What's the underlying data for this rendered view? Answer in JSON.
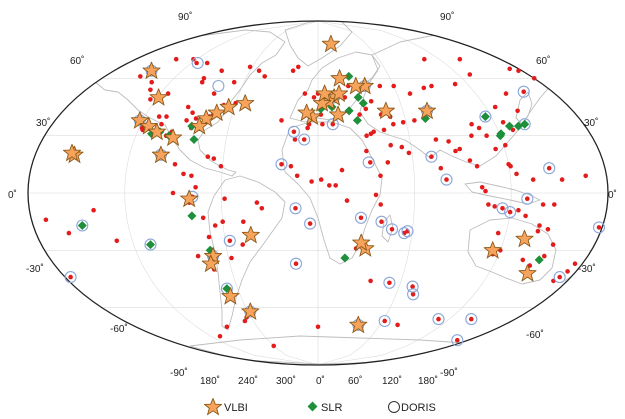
{
  "axis_labels": {
    "top_left": "90˚",
    "top_right": "90˚",
    "lat_left": [
      "60˚",
      "30˚",
      "0˚",
      "-30˚",
      "-60˚"
    ],
    "lat_right": [
      "60˚",
      "30˚",
      "0˚",
      "-30˚",
      "-60˚"
    ],
    "bottom_left": "-90˚",
    "bottom_right": "-90˚",
    "longitudes": [
      "180˚",
      "240˚",
      "300˚",
      "0˚",
      "60˚",
      "120˚",
      "180˚"
    ]
  },
  "legend": {
    "vlbi": "VLBI",
    "slr": "SLR",
    "doris": "DORIS"
  },
  "colors": {
    "gnss_dot": "#e31b1b",
    "vlbi_fill": "#f7a35c",
    "vlbi_stroke": "#8a5a1a",
    "slr_fill": "#1e8f3a",
    "doris_stroke": "#8aa6d8",
    "land": "#c9c9c9",
    "grid": "#cccccc"
  },
  "sites": {
    "gnss": [
      [
        -155,
        20
      ],
      [
        -150,
        61
      ],
      [
        -147,
        64
      ],
      [
        -135,
        58
      ],
      [
        -130,
        54
      ],
      [
        -124,
        49
      ],
      [
        -122,
        38
      ],
      [
        -118,
        34
      ],
      [
        -117,
        33
      ],
      [
        -114,
        52
      ],
      [
        -110,
        40
      ],
      [
        -106,
        36
      ],
      [
        -105,
        40
      ],
      [
        -100,
        30
      ],
      [
        -97,
        32
      ],
      [
        -95,
        29
      ],
      [
        -93,
        45
      ],
      [
        -90,
        38
      ],
      [
        -88,
        42
      ],
      [
        -85,
        34
      ],
      [
        -84,
        39
      ],
      [
        -81,
        28
      ],
      [
        -80,
        35
      ],
      [
        -77,
        39
      ],
      [
        -75,
        40
      ],
      [
        -73,
        41
      ],
      [
        -71,
        43
      ],
      [
        -68,
        46
      ],
      [
        -64,
        45
      ],
      [
        -60,
        47
      ],
      [
        -53,
        47
      ],
      [
        -95,
        60
      ],
      [
        -94,
        58
      ],
      [
        -85,
        64
      ],
      [
        -79,
        52
      ],
      [
        -68,
        58
      ],
      [
        -62,
        66
      ],
      [
        -115,
        68
      ],
      [
        -105,
        68
      ],
      [
        -123,
        70
      ],
      [
        -140,
        70
      ],
      [
        -45,
        61
      ],
      [
        -52,
        64
      ],
      [
        -22,
        64
      ],
      [
        -18,
        66
      ],
      [
        -100,
        20
      ],
      [
        -99,
        19
      ],
      [
        -90,
        15
      ],
      [
        -84,
        10
      ],
      [
        -79,
        9
      ],
      [
        -70,
        19
      ],
      [
        -66,
        18
      ],
      [
        -61,
        14
      ],
      [
        -76,
        3
      ],
      [
        -78,
        -2
      ],
      [
        -80,
        -5
      ],
      [
        -72,
        -13
      ],
      [
        -65,
        -17
      ],
      [
        -58,
        -3
      ],
      [
        -60,
        -15
      ],
      [
        -57,
        -25
      ],
      [
        -47,
        -15
      ],
      [
        -43,
        -22
      ],
      [
        -38,
        -5
      ],
      [
        -35,
        -8
      ],
      [
        -49,
        -27
      ],
      [
        -58,
        -34
      ],
      [
        -70,
        -23
      ],
      [
        -71,
        -33
      ],
      [
        -72,
        -40
      ],
      [
        -68,
        -50
      ],
      [
        -68,
        -55
      ],
      [
        -10,
        52
      ],
      [
        -8,
        42
      ],
      [
        -6,
        36
      ],
      [
        -3,
        50
      ],
      [
        0,
        52
      ],
      [
        2,
        41
      ],
      [
        3,
        47
      ],
      [
        5,
        52
      ],
      [
        8,
        48
      ],
      [
        10,
        45
      ],
      [
        12,
        50
      ],
      [
        14,
        41
      ],
      [
        16,
        52
      ],
      [
        18,
        60
      ],
      [
        20,
        50
      ],
      [
        22,
        43
      ],
      [
        24,
        56
      ],
      [
        26,
        61
      ],
      [
        27,
        38
      ],
      [
        29,
        41
      ],
      [
        30,
        50
      ],
      [
        34,
        44
      ],
      [
        37,
        56
      ],
      [
        39,
        48
      ],
      [
        44,
        41
      ],
      [
        49,
        56
      ],
      [
        50,
        40
      ],
      [
        60,
        56
      ],
      [
        70,
        52
      ],
      [
        77,
        43
      ],
      [
        74,
        39
      ],
      [
        66,
        38
      ],
      [
        58,
        37
      ],
      [
        51,
        36
      ],
      [
        44,
        33
      ],
      [
        37,
        32
      ],
      [
        35,
        31
      ],
      [
        47,
        25
      ],
      [
        54,
        24
      ],
      [
        58,
        21
      ],
      [
        44,
        16
      ],
      [
        39,
        9
      ],
      [
        33,
        16
      ],
      [
        32,
        30
      ],
      [
        31,
        22
      ],
      [
        10,
        36
      ],
      [
        3,
        36
      ],
      [
        -7,
        34
      ],
      [
        -9,
        28
      ],
      [
        -15,
        28
      ],
      [
        -17,
        14
      ],
      [
        -13,
        9
      ],
      [
        -4,
        6
      ],
      [
        2,
        7
      ],
      [
        7,
        4
      ],
      [
        11,
        4
      ],
      [
        15,
        12
      ],
      [
        18,
        -4
      ],
      [
        27,
        -13
      ],
      [
        28,
        -26
      ],
      [
        18,
        -34
      ],
      [
        25,
        -29
      ],
      [
        31,
        -29
      ],
      [
        36,
        -1
      ],
      [
        39,
        -6
      ],
      [
        47,
        -19
      ],
      [
        57,
        -20
      ],
      [
        40,
        -15
      ],
      [
        73,
        -53
      ],
      [
        55,
        -21
      ],
      [
        72,
        19
      ],
      [
        77,
        28
      ],
      [
        77,
        13
      ],
      [
        80,
        7
      ],
      [
        85,
        27
      ],
      [
        88,
        22
      ],
      [
        91,
        23
      ],
      [
        96,
        17
      ],
      [
        100,
        14
      ],
      [
        102,
        3
      ],
      [
        104,
        1
      ],
      [
        106,
        -6
      ],
      [
        110,
        -7
      ],
      [
        115,
        -8
      ],
      [
        120,
        -10
      ],
      [
        125,
        -9
      ],
      [
        130,
        -3
      ],
      [
        140,
        -6
      ],
      [
        147,
        -6
      ],
      [
        101,
        30
      ],
      [
        104,
        36
      ],
      [
        108,
        34
      ],
      [
        111,
        30
      ],
      [
        114,
        23
      ],
      [
        116,
        40
      ],
      [
        121,
        31
      ],
      [
        121,
        25
      ],
      [
        126,
        37
      ],
      [
        127,
        45
      ],
      [
        129,
        35
      ],
      [
        130,
        33
      ],
      [
        135,
        35
      ],
      [
        140,
        36
      ],
      [
        141,
        43
      ],
      [
        143,
        52
      ],
      [
        158,
        53
      ],
      [
        177,
        64
      ],
      [
        130,
        62
      ],
      [
        110,
        57
      ],
      [
        90,
        56
      ],
      [
        83,
        55
      ],
      [
        105,
        70
      ],
      [
        140,
        70
      ],
      [
        172,
        65
      ],
      [
        180,
        60
      ],
      [
        120,
        15
      ],
      [
        121,
        14
      ],
      [
        124,
        10
      ],
      [
        145,
        13
      ],
      [
        134,
        7
      ],
      [
        152,
        7
      ],
      [
        167,
        9
      ],
      [
        130,
        -12
      ],
      [
        115,
        -21
      ],
      [
        116,
        -32
      ],
      [
        120,
        -30
      ],
      [
        133,
        -24
      ],
      [
        138,
        -35
      ],
      [
        140,
        -20
      ],
      [
        145,
        -38
      ],
      [
        147,
        -42
      ],
      [
        149,
        -35
      ],
      [
        151,
        -33
      ],
      [
        153,
        -27
      ],
      [
        146,
        -19
      ],
      [
        140,
        -17
      ],
      [
        174,
        -41
      ],
      [
        175,
        -37
      ],
      [
        170,
        -46
      ],
      [
        178,
        -18
      ],
      [
        172,
        -44
      ],
      [
        -159,
        -21
      ],
      [
        -171,
        -14
      ],
      [
        -149,
        -17
      ],
      [
        -140,
        -9
      ],
      [
        -130,
        -25
      ],
      [
        -109,
        -27
      ],
      [
        -90,
        0
      ],
      [
        -176,
        -44
      ],
      [
        -80,
        -33
      ],
      [
        -5,
        -16
      ],
      [
        -14,
        -8
      ],
      [
        -23,
        15
      ],
      [
        -25,
        38
      ],
      [
        -16,
        32
      ],
      [
        70,
        -49
      ],
      [
        52,
        -47
      ],
      [
        38,
        -46
      ],
      [
        -15,
        -37
      ],
      [
        167,
        -77
      ],
      [
        110,
        -66
      ],
      [
        77,
        -69
      ],
      [
        62,
        -67
      ],
      [
        39,
        -69
      ],
      [
        -58,
        -62
      ],
      [
        -64,
        -65
      ],
      [
        -68,
        -67
      ],
      [
        140,
        -66
      ],
      [
        -110,
        -75
      ],
      [
        -90,
        -70
      ],
      [
        0,
        -70
      ],
      [
        -60,
        -80
      ]
    ],
    "vlbi": [
      [
        -147,
        64
      ],
      [
        -122,
        38
      ],
      [
        -119,
        50
      ],
      [
        -114,
        35
      ],
      [
        -107,
        32
      ],
      [
        -77,
        39
      ],
      [
        -71,
        42
      ],
      [
        -95,
        29
      ],
      [
        -80,
        35
      ],
      [
        -155,
        20
      ],
      [
        -157,
        21
      ],
      [
        -100,
        20
      ],
      [
        -80,
        -3
      ],
      [
        -70,
        -33
      ],
      [
        -73,
        -37
      ],
      [
        -58,
        -62
      ],
      [
        -43,
        -22
      ],
      [
        -68,
        -54
      ],
      [
        16,
        78
      ],
      [
        -53,
        47
      ],
      [
        -64,
        45
      ],
      [
        12,
        50
      ],
      [
        8,
        48
      ],
      [
        3,
        47
      ],
      [
        5,
        52
      ],
      [
        14,
        41
      ],
      [
        16,
        52
      ],
      [
        18,
        60
      ],
      [
        37,
        56
      ],
      [
        30,
        56
      ],
      [
        -4,
        40
      ],
      [
        -8,
        42
      ],
      [
        48,
        43
      ],
      [
        77,
        43
      ],
      [
        31,
        -29
      ],
      [
        28,
        -26
      ],
      [
        39,
        -69
      ],
      [
        147,
        -42
      ],
      [
        133,
        -24
      ],
      [
        115,
        -30
      ]
    ],
    "slr": [
      [
        -155,
        20
      ],
      [
        -157,
        21
      ],
      [
        -114,
        35
      ],
      [
        -105,
        32
      ],
      [
        -77,
        39
      ],
      [
        -81,
        28
      ],
      [
        -110,
        31
      ],
      [
        -85,
        35
      ],
      [
        -98,
        30
      ],
      [
        -70,
        -33
      ],
      [
        -71,
        -30
      ],
      [
        -68,
        -50
      ],
      [
        -109,
        -27
      ],
      [
        -149,
        -17
      ],
      [
        -79,
        -12
      ],
      [
        12,
        50
      ],
      [
        14,
        41
      ],
      [
        16,
        52
      ],
      [
        5,
        52
      ],
      [
        -4,
        40
      ],
      [
        2,
        44
      ],
      [
        8,
        48
      ],
      [
        10,
        45
      ],
      [
        18,
        60
      ],
      [
        26,
        61
      ],
      [
        22,
        43
      ],
      [
        37,
        56
      ],
      [
        30,
        50
      ],
      [
        33,
        47
      ],
      [
        27,
        38
      ],
      [
        77,
        43
      ],
      [
        74,
        39
      ],
      [
        120,
        30
      ],
      [
        116,
        40
      ],
      [
        129,
        35
      ],
      [
        121,
        31
      ],
      [
        140,
        36
      ],
      [
        135,
        35
      ],
      [
        28,
        -26
      ],
      [
        18,
        -34
      ],
      [
        115,
        -30
      ],
      [
        149,
        -35
      ],
      [
        133,
        -24
      ],
      [
        147,
        -42
      ]
    ],
    "doris": [
      [
        -147,
        64
      ],
      [
        -79,
        56
      ],
      [
        -114,
        68
      ],
      [
        -122,
        38
      ],
      [
        -100,
        20
      ],
      [
        -78,
        -2
      ],
      [
        -57,
        -25
      ],
      [
        -70,
        -33
      ],
      [
        -68,
        -50
      ],
      [
        -58,
        -62
      ],
      [
        -109,
        -27
      ],
      [
        -149,
        -17
      ],
      [
        -176,
        -44
      ],
      [
        -23,
        15
      ],
      [
        -9,
        28
      ],
      [
        -16,
        32
      ],
      [
        -14,
        -8
      ],
      [
        -5,
        -16
      ],
      [
        -15,
        -37
      ],
      [
        10,
        36
      ],
      [
        12,
        50
      ],
      [
        32,
        16
      ],
      [
        37,
        56
      ],
      [
        39,
        -69
      ],
      [
        27,
        -13
      ],
      [
        40,
        -15
      ],
      [
        47,
        -19
      ],
      [
        55,
        -21
      ],
      [
        57,
        -20
      ],
      [
        73,
        -53
      ],
      [
        70,
        -49
      ],
      [
        52,
        -47
      ],
      [
        77,
        43
      ],
      [
        80,
        7
      ],
      [
        72,
        19
      ],
      [
        116,
        40
      ],
      [
        115,
        -8
      ],
      [
        120,
        -10
      ],
      [
        130,
        -3
      ],
      [
        140,
        36
      ],
      [
        145,
        13
      ],
      [
        158,
        53
      ],
      [
        172,
        -44
      ],
      [
        178,
        -18
      ],
      [
        167,
        -77
      ],
      [
        110,
        -66
      ],
      [
        140,
        -66
      ],
      [
        62,
        -67
      ]
    ]
  }
}
